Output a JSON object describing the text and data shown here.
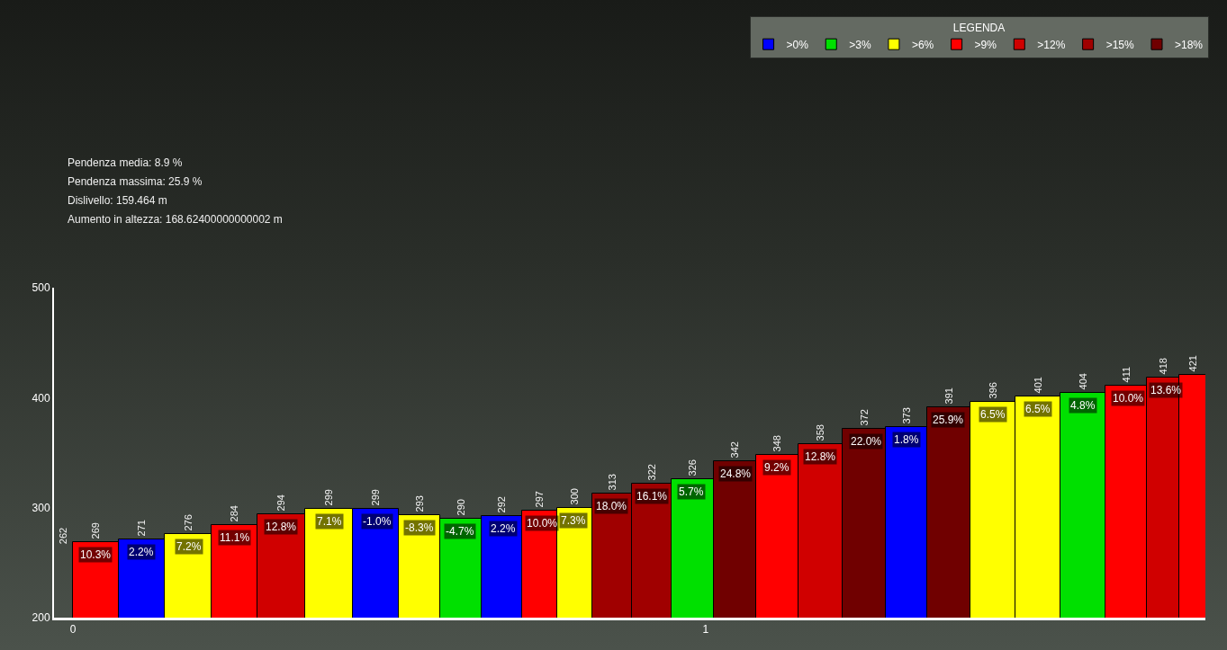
{
  "chart_data": {
    "type": "bar",
    "legend_title": "LEGENDA",
    "legend": "top right",
    "data_labels": true,
    "x": [
      0.036,
      0.108,
      0.183,
      0.256,
      0.328,
      0.405,
      0.481,
      0.548,
      0.612,
      0.68,
      0.741,
      0.791,
      0.851,
      0.915,
      0.978,
      1.047,
      1.112,
      1.181,
      1.253,
      1.318,
      1.383,
      1.454,
      1.525,
      1.597,
      1.667,
      1.728,
      1.77
    ],
    "xlim": [
      -0.03,
      1.79
    ],
    "xticks": [
      0,
      1
    ],
    "ylim": [
      200,
      500
    ],
    "yticks": [
      200,
      300,
      400,
      500
    ],
    "series": [
      {
        "name": ">0%",
        "color": "#0000ff",
        "values": [
          null,
          271,
          null,
          null,
          null,
          null,
          299,
          null,
          null,
          292,
          null,
          null,
          null,
          null,
          null,
          null,
          null,
          null,
          null,
          373,
          null,
          null,
          null,
          null,
          null,
          null,
          null
        ]
      },
      {
        "name": ">3%",
        "color": "#00e000",
        "values": [
          null,
          null,
          null,
          null,
          null,
          null,
          null,
          null,
          290,
          null,
          null,
          null,
          null,
          null,
          326,
          null,
          null,
          null,
          null,
          null,
          null,
          null,
          null,
          404,
          null,
          null,
          null
        ]
      },
      {
        "name": ">6%",
        "color": "#ffff00",
        "values": [
          null,
          null,
          276,
          null,
          null,
          299,
          null,
          293,
          null,
          null,
          null,
          300,
          null,
          null,
          null,
          null,
          null,
          null,
          null,
          null,
          null,
          396,
          401,
          null,
          null,
          null,
          null
        ]
      },
      {
        "name": ">9%",
        "color": "#ff0000",
        "values": [
          269,
          null,
          null,
          284,
          null,
          null,
          null,
          null,
          null,
          null,
          297,
          null,
          null,
          null,
          null,
          null,
          348,
          null,
          null,
          null,
          null,
          null,
          null,
          null,
          411,
          null,
          421
        ]
      },
      {
        "name": ">12%",
        "color": "#d00000",
        "values": [
          null,
          null,
          null,
          null,
          294,
          null,
          null,
          null,
          null,
          null,
          null,
          null,
          null,
          null,
          null,
          null,
          null,
          358,
          null,
          null,
          null,
          null,
          null,
          null,
          null,
          418,
          null
        ]
      },
      {
        "name": ">15%",
        "color": "#a00000",
        "values": [
          null,
          null,
          null,
          null,
          null,
          null,
          null,
          null,
          null,
          null,
          null,
          null,
          313,
          322,
          null,
          null,
          null,
          null,
          null,
          null,
          null,
          null,
          null,
          null,
          null,
          null,
          null
        ]
      },
      {
        "name": ">18%",
        "color": "#700000",
        "values": [
          null,
          null,
          null,
          null,
          null,
          null,
          null,
          null,
          null,
          null,
          null,
          null,
          null,
          null,
          null,
          342,
          null,
          null,
          372,
          null,
          391,
          null,
          null,
          null,
          null,
          null,
          null
        ]
      }
    ],
    "annotations": [
      "Pendenza media: 8.9 %",
      "Pendenza massima: 25.9 %",
      "Dislivello: 159.464 m",
      "Aumento in altezza: 168.62400000000002 m",
      {
        "text": "262",
        "x": 0,
        "y": 262
      },
      {
        "text": "10.3%",
        "x": 0.036,
        "y": 269
      },
      {
        "text": "2.2%",
        "x": 0.108,
        "y": 271
      },
      {
        "text": "7.2%",
        "x": 0.183,
        "y": 276
      },
      {
        "text": "11.1%",
        "x": 0.256,
        "y": 284
      },
      {
        "text": "12.8%",
        "x": 0.328,
        "y": 294
      },
      {
        "text": "7.1%",
        "x": 0.405,
        "y": 299
      },
      {
        "text": "-1.0%",
        "x": 0.481,
        "y": 299
      },
      {
        "text": "-8.3%",
        "x": 0.548,
        "y": 293
      },
      {
        "text": "-4.7%",
        "x": 0.612,
        "y": 290
      },
      {
        "text": "2.2%",
        "x": 0.68,
        "y": 292
      },
      {
        "text": "10.0%",
        "x": 0.741,
        "y": 297
      },
      {
        "text": "7.3%",
        "x": 0.791,
        "y": 300
      },
      {
        "text": "18.0%",
        "x": 0.851,
        "y": 313
      },
      {
        "text": "16.1%",
        "x": 0.915,
        "y": 322
      },
      {
        "text": "5.7%",
        "x": 0.978,
        "y": 326
      },
      {
        "text": "24.8%",
        "x": 1.047,
        "y": 342
      },
      {
        "text": "9.2%",
        "x": 1.112,
        "y": 348
      },
      {
        "text": "12.8%",
        "x": 1.181,
        "y": 358
      },
      {
        "text": "22.0%",
        "x": 1.253,
        "y": 372
      },
      {
        "text": "1.8%",
        "x": 1.318,
        "y": 373
      },
      {
        "text": "25.9%",
        "x": 1.383,
        "y": 391
      },
      {
        "text": "6.5%",
        "x": 1.454,
        "y": 396
      },
      {
        "text": "6.5%",
        "x": 1.525,
        "y": 401
      },
      {
        "text": "4.8%",
        "x": 1.597,
        "y": 404
      },
      {
        "text": "10.0%",
        "x": 1.667,
        "y": 411
      },
      {
        "text": "13.6%",
        "x": 1.728,
        "y": 418
      }
    ]
  }
}
